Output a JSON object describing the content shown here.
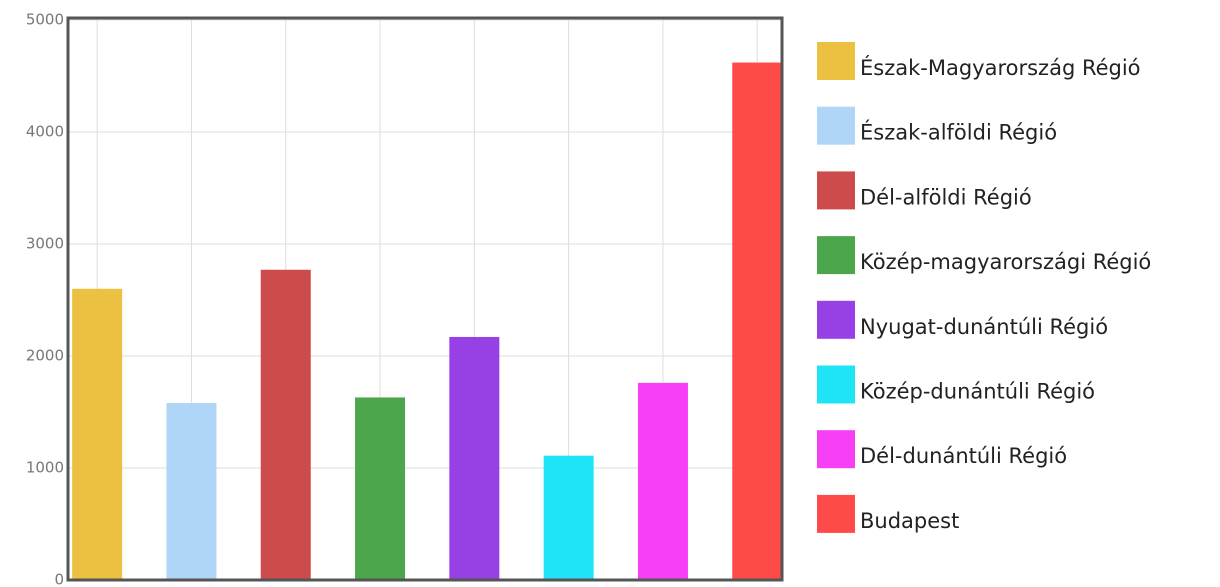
{
  "chart_data": {
    "type": "bar",
    "categories": [
      "Észak-Magyarország Régió",
      "Észak-alföldi Régió",
      "Dél-alföldi Régió",
      "Közép-magyarországi Régió",
      "Nyugat-dunántúli Régió",
      "Közép-dunántúli Régió",
      "Dél-dunántúli Régió",
      "Budapest"
    ],
    "values": [
      2600,
      1580,
      2770,
      1630,
      2170,
      1110,
      1760,
      4620
    ],
    "colors": [
      "#ecc142",
      "#b0d6f7",
      "#cc4b4b",
      "#4ca64c",
      "#9640e6",
      "#1fe4f5",
      "#f740f5",
      "#ff4a4a"
    ],
    "ylim": [
      0,
      5000
    ],
    "yticks": [
      0,
      1000,
      2000,
      3000,
      4000,
      5000
    ],
    "grid": true,
    "legend": "right"
  }
}
